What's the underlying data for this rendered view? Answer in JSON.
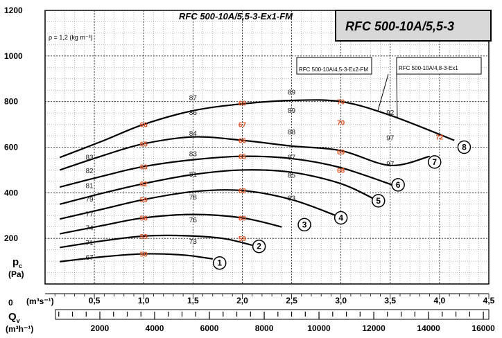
{
  "chart_data": {
    "type": "line",
    "title": "RFC 500-10A/5,5-3",
    "subtitle": "RFC 500-10A/5,5-3-Ex1-FM",
    "variants": [
      "RFC 500-10A/4,5-3-Ex2-FM",
      "RFC 500-10A/4,8-3-Ex1"
    ],
    "density_note": "ρ = 1,2 (kg m⁻³)",
    "ylabel": "p",
    "ylabel_sub": "c",
    "yunit": "(Pa)",
    "xlabel": "Q",
    "xlabel_sub": "v",
    "xunit_top": "(m³s⁻¹)",
    "xunit_bottom": "(m³h⁻¹)",
    "zero_label": "0",
    "xlim": [
      0,
      4.5
    ],
    "ylim": [
      0,
      1200
    ],
    "x_ticks_top": [
      "0,5",
      "1,0",
      "1,5",
      "2,0",
      "2,5",
      "3,0",
      "3,5",
      "4,0",
      "4,5"
    ],
    "x_tick_values_top": [
      0.5,
      1.0,
      1.5,
      2.0,
      2.5,
      3.0,
      3.5,
      4.0,
      4.5
    ],
    "x_ticks_bottom": [
      "2000",
      "4000",
      "6000",
      "8000",
      "10000",
      "12000",
      "14000",
      "16000"
    ],
    "x_tick_values_bottom": [
      2000,
      4000,
      6000,
      8000,
      10000,
      12000,
      14000,
      16000
    ],
    "y_ticks": [
      "200",
      "400",
      "600",
      "800",
      "1000",
      "1200"
    ],
    "y_tick_values": [
      200,
      400,
      600,
      800,
      1000,
      1200
    ],
    "grid": true,
    "series": [
      {
        "name": "1",
        "x": [
          0.15,
          0.6,
          1.0,
          1.4,
          1.7
        ],
        "y": [
          98,
          120,
          132,
          127,
          110
        ]
      },
      {
        "name": "2",
        "x": [
          0.15,
          0.6,
          1.0,
          1.4,
          1.8,
          2.1
        ],
        "y": [
          160,
          190,
          210,
          212,
          200,
          170
        ]
      },
      {
        "name": "3",
        "x": [
          0.15,
          0.6,
          1.0,
          1.5,
          2.0,
          2.4
        ],
        "y": [
          220,
          258,
          290,
          305,
          290,
          250
        ]
      },
      {
        "name": "4",
        "x": [
          0.15,
          0.6,
          1.0,
          1.5,
          2.0,
          2.5,
          2.95
        ],
        "y": [
          285,
          330,
          370,
          405,
          410,
          370,
          300
        ]
      },
      {
        "name": "5",
        "x": [
          0.15,
          0.6,
          1.0,
          1.5,
          2.0,
          2.5,
          3.0,
          3.35
        ],
        "y": [
          350,
          400,
          440,
          480,
          500,
          490,
          440,
          370
        ]
      },
      {
        "name": "6",
        "x": [
          0.15,
          0.6,
          1.0,
          1.5,
          2.0,
          2.5,
          3.0,
          3.55
        ],
        "y": [
          425,
          475,
          515,
          545,
          560,
          550,
          510,
          430
        ]
      },
      {
        "name": "7",
        "x": [
          0.15,
          0.6,
          1.0,
          1.5,
          2.0,
          2.5,
          3.0,
          3.5,
          3.9
        ],
        "y": [
          500,
          565,
          615,
          645,
          630,
          605,
          585,
          520,
          560
        ]
      },
      {
        "name": "8",
        "x": [
          0.15,
          0.6,
          1.0,
          1.5,
          2.0,
          2.5,
          3.0,
          3.5,
          4.15
        ],
        "y": [
          555,
          630,
          700,
          760,
          790,
          805,
          800,
          740,
          630
        ]
      }
    ],
    "circle_labels": [
      {
        "text": "1",
        "x": 1.77,
        "y": 92
      },
      {
        "text": "2",
        "x": 2.17,
        "y": 165
      },
      {
        "text": "3",
        "x": 2.63,
        "y": 260
      },
      {
        "text": "4",
        "x": 3.0,
        "y": 290
      },
      {
        "text": "5",
        "x": 3.38,
        "y": 365
      },
      {
        "text": "6",
        "x": 3.58,
        "y": 435
      },
      {
        "text": "7",
        "x": 3.95,
        "y": 535
      },
      {
        "text": "8",
        "x": 4.25,
        "y": 600
      }
    ],
    "efficiency_labels": [
      {
        "text": "67",
        "x": 0.45,
        "y": 115
      },
      {
        "text": "71",
        "x": 0.45,
        "y": 180
      },
      {
        "text": "74",
        "x": 0.45,
        "y": 245
      },
      {
        "text": "77",
        "x": 0.45,
        "y": 305
      },
      {
        "text": "79",
        "x": 0.45,
        "y": 370
      },
      {
        "text": "81",
        "x": 0.45,
        "y": 430
      },
      {
        "text": "82",
        "x": 0.45,
        "y": 495
      },
      {
        "text": "83",
        "x": 0.45,
        "y": 555
      },
      {
        "text": "87",
        "x": 1.5,
        "y": 815
      },
      {
        "text": "86",
        "x": 1.5,
        "y": 750
      },
      {
        "text": "84",
        "x": 1.5,
        "y": 660
      },
      {
        "text": "83",
        "x": 1.5,
        "y": 570
      },
      {
        "text": "81",
        "x": 1.5,
        "y": 480
      },
      {
        "text": "78",
        "x": 1.5,
        "y": 380
      },
      {
        "text": "76",
        "x": 1.5,
        "y": 280
      },
      {
        "text": "73",
        "x": 1.5,
        "y": 185
      },
      {
        "text": "89",
        "x": 2.5,
        "y": 840
      },
      {
        "text": "89",
        "x": 2.5,
        "y": 760
      },
      {
        "text": "88",
        "x": 2.5,
        "y": 665
      },
      {
        "text": "87",
        "x": 2.5,
        "y": 555
      },
      {
        "text": "85",
        "x": 2.5,
        "y": 475
      },
      {
        "text": "83",
        "x": 2.5,
        "y": 375
      },
      {
        "text": "92",
        "x": 3.5,
        "y": 750
      },
      {
        "text": "97",
        "x": 3.5,
        "y": 640
      },
      {
        "text": "97",
        "x": 3.5,
        "y": 525
      }
    ],
    "noise_labels": [
      {
        "text": "50",
        "x": 1.0,
        "y": 132
      },
      {
        "text": "53",
        "x": 1.0,
        "y": 210
      },
      {
        "text": "56",
        "x": 1.0,
        "y": 290
      },
      {
        "text": "59",
        "x": 1.0,
        "y": 370
      },
      {
        "text": "62",
        "x": 1.0,
        "y": 440
      },
      {
        "text": "63",
        "x": 1.0,
        "y": 515
      },
      {
        "text": "65",
        "x": 1.0,
        "y": 615
      },
      {
        "text": "66",
        "x": 1.0,
        "y": 700
      },
      {
        "text": "68",
        "x": 2.0,
        "y": 795
      },
      {
        "text": "67",
        "x": 2.0,
        "y": 700
      },
      {
        "text": "66",
        "x": 2.0,
        "y": 630
      },
      {
        "text": "65",
        "x": 2.0,
        "y": 560
      },
      {
        "text": "62",
        "x": 2.0,
        "y": 410
      },
      {
        "text": "60",
        "x": 2.0,
        "y": 290
      },
      {
        "text": "59",
        "x": 2.0,
        "y": 200
      },
      {
        "text": "70",
        "x": 3.0,
        "y": 800
      },
      {
        "text": "70",
        "x": 3.0,
        "y": 710
      },
      {
        "text": "69",
        "x": 3.0,
        "y": 580
      },
      {
        "text": "68",
        "x": 3.0,
        "y": 500
      },
      {
        "text": "72",
        "x": 4.0,
        "y": 645
      }
    ]
  }
}
